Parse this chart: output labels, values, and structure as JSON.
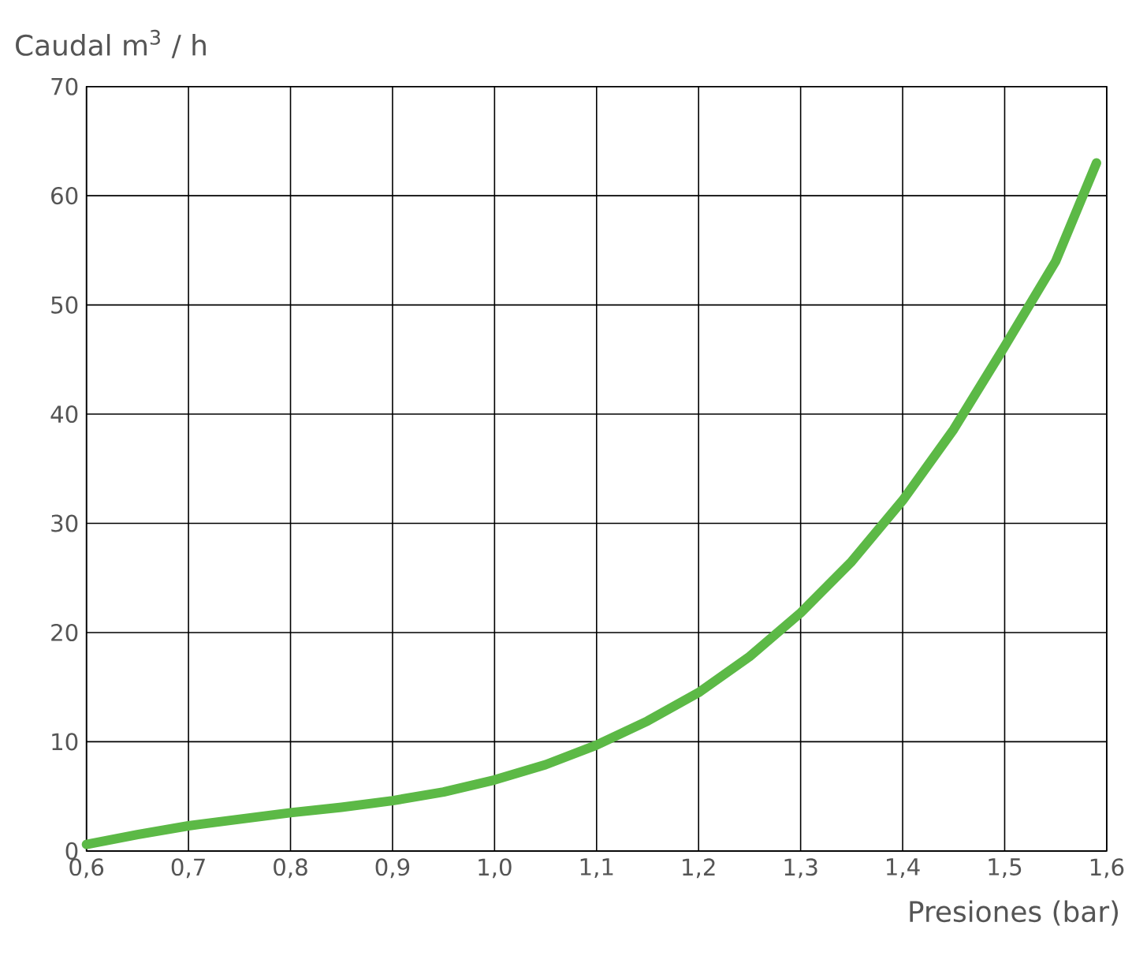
{
  "chart_data": {
    "type": "line",
    "xlabel": "Presiones (bar)",
    "ylabel": "Caudal m$^{3}$ / h",
    "x": [
      0.6,
      0.65,
      0.7,
      0.75,
      0.8,
      0.85,
      0.9,
      0.95,
      1.0,
      1.05,
      1.1,
      1.15,
      1.2,
      1.25,
      1.3,
      1.35,
      1.4,
      1.45,
      1.5,
      1.55,
      1.59
    ],
    "series": [
      {
        "color": "#5cb946",
        "values": [
          0.6,
          1.5,
          2.3,
          2.9,
          3.5,
          4.0,
          4.6,
          5.4,
          6.5,
          7.9,
          9.7,
          11.9,
          14.5,
          17.8,
          21.8,
          26.5,
          32.1,
          38.6,
          46.2,
          54,
          63
        ]
      }
    ],
    "xlim": [
      0.6,
      1.6
    ],
    "ylim": [
      0,
      70
    ],
    "xticks": [
      {
        "value": 0.6,
        "label": "0,6"
      },
      {
        "value": 0.7,
        "label": "0,7"
      },
      {
        "value": 0.8,
        "label": "0,8"
      },
      {
        "value": 0.9,
        "label": "0,9"
      },
      {
        "value": 1.0,
        "label": "1,0"
      },
      {
        "value": 1.1,
        "label": "1,1"
      },
      {
        "value": 1.2,
        "label": "1,2"
      },
      {
        "value": 1.3,
        "label": "1,3"
      },
      {
        "value": 1.4,
        "label": "1,4"
      },
      {
        "value": 1.5,
        "label": "1,5"
      },
      {
        "value": 1.6,
        "label": "1,6"
      }
    ],
    "yticks": [
      0,
      10,
      20,
      30,
      40,
      50,
      60,
      70
    ],
    "grid": true
  }
}
